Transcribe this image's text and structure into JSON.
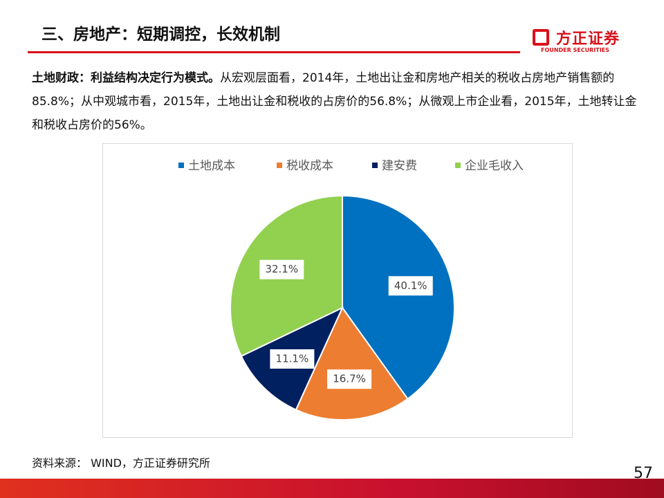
{
  "header": {
    "title": "三、房地产：短期调控，长效机制"
  },
  "logo": {
    "name": "方正证券",
    "subtitle": "FOUNDER SECURITIES"
  },
  "body": {
    "lead": "土地财政：利益结构决定行为模式。",
    "text": "从宏观层面看，2014年，土地出让金和房地产相关的税收占房地产销售额的85.8%；从中观城市看，2015年，土地出让金和税收的占房价的56.8%；从微观上市企业看，2015年，土地转让金和税收占房价的56%。"
  },
  "chart_data": {
    "type": "pie",
    "categories": [
      "土地成本",
      "税收成本",
      "建安费",
      "企业毛收入"
    ],
    "values": [
      40.1,
      16.7,
      11.1,
      32.1
    ],
    "value_labels": [
      "40.1%",
      "16.7%",
      "11.1%",
      "32.1%"
    ],
    "colors": [
      "#0070c0",
      "#ed7d31",
      "#002060",
      "#92d050"
    ],
    "legend": "top"
  },
  "source": "资料来源： WIND，方正证券研究所",
  "page_number": "57"
}
